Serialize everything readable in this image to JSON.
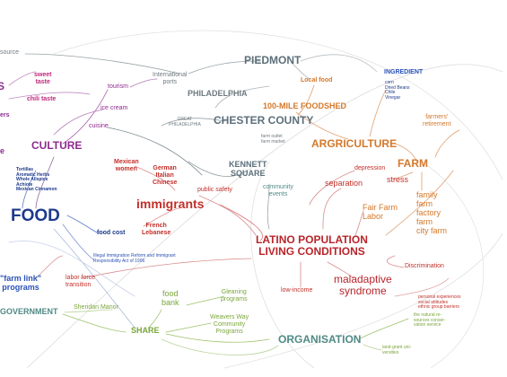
{
  "nodes": {
    "source": "source",
    "sweet_taste": [
      "sweet",
      "taste"
    ],
    "s_fragment": "S",
    "chili_taste": "chili taste",
    "ers_fragment": "ers",
    "tourism": "tourism",
    "ice_cream": "ice cream",
    "cuisine": "cuisine",
    "culture": "CULTURE",
    "e_fragment": "e",
    "mexican_women": [
      "Mexican",
      "women"
    ],
    "german_italian_chinese": [
      "German",
      "Italian",
      "Chinese"
    ],
    "ingredients_list": [
      "Tortillas",
      "Aromatic Herbs",
      "Whole Allspice",
      "Achiote",
      "Mexican Cinnamon"
    ],
    "food": "FOOD",
    "food_cost": "food cost",
    "immigrants": "immigrants",
    "french_lebanese": [
      "French",
      "Lebanese"
    ],
    "public_safety": "public safety",
    "international_ports": [
      "International",
      "ports"
    ],
    "philadelphia": "PHILADELPHIA",
    "great_philadelphia": [
      "GREAT",
      "PHILADELPHIA"
    ],
    "piedmont": "PIEDMONT",
    "local_food": "Local food",
    "hundred_mile_foodshed": "100-MILE FOODSHED",
    "chester_county": "CHESTER COUNTY",
    "farm_outlet": [
      "farm outlet",
      "farm market"
    ],
    "kennett_square": [
      "KENNETT",
      "SQUARE"
    ],
    "community_events": [
      "community",
      "events"
    ],
    "ingredient": "INGREDIENT",
    "ingredient_list": [
      "corn",
      "Dried Beans",
      "Chile",
      "Vinegar"
    ],
    "agriculture": "ARGRICULTURE",
    "farmers_retirement": [
      "farmers'",
      "retirement"
    ],
    "depression": "depression",
    "farm": "FARM",
    "separation": "separation",
    "stress": "stress",
    "fair_farm_labor": [
      "Fair Farm",
      "Labor"
    ],
    "farm_types": [
      "family",
      "farm",
      "factory",
      "farm",
      "city farm"
    ],
    "latino_living": [
      "LATINO POPULATION",
      "LIVING CONDITIONS"
    ],
    "illegal_immigration_act": [
      "Illegal Immigration Reform and Immigrant",
      "Responsibility Act of 1996"
    ],
    "farm_link_programs": [
      "\"farm link\"",
      "programs"
    ],
    "labor_force_transition": [
      "labor force",
      "transition"
    ],
    "discrimination": "Discrimination",
    "low_income": "low-income",
    "maladaptive_syndrome": [
      "maladaptive",
      "syndrome"
    ],
    "personal_experiences": [
      "personal experiences",
      "social attitudes",
      "ethnic group barriers"
    ],
    "gleaning_programs": [
      "Gleaning",
      "programs"
    ],
    "food_bank": [
      "food",
      "bank"
    ],
    "government": "GOVERNMENT",
    "sheridan_manor": "Sheridan Manor",
    "weavers_way": [
      "Weavers Way",
      "Community",
      "Programs"
    ],
    "share": "SHARE",
    "organisation": "ORGANISATION",
    "natural_resources": [
      "the natural re-",
      "sources conser-",
      "vation service"
    ],
    "land_grant": [
      "land-grant uni-",
      "versities"
    ]
  },
  "colors": {
    "culture": "#8d2a8f",
    "food": "#1d3a8c",
    "immigrants": "#c2302a",
    "place": "#6e7a80",
    "agriculture": "#d4782a",
    "organisation": "#7aa63a",
    "links": "#c9c9c9"
  }
}
